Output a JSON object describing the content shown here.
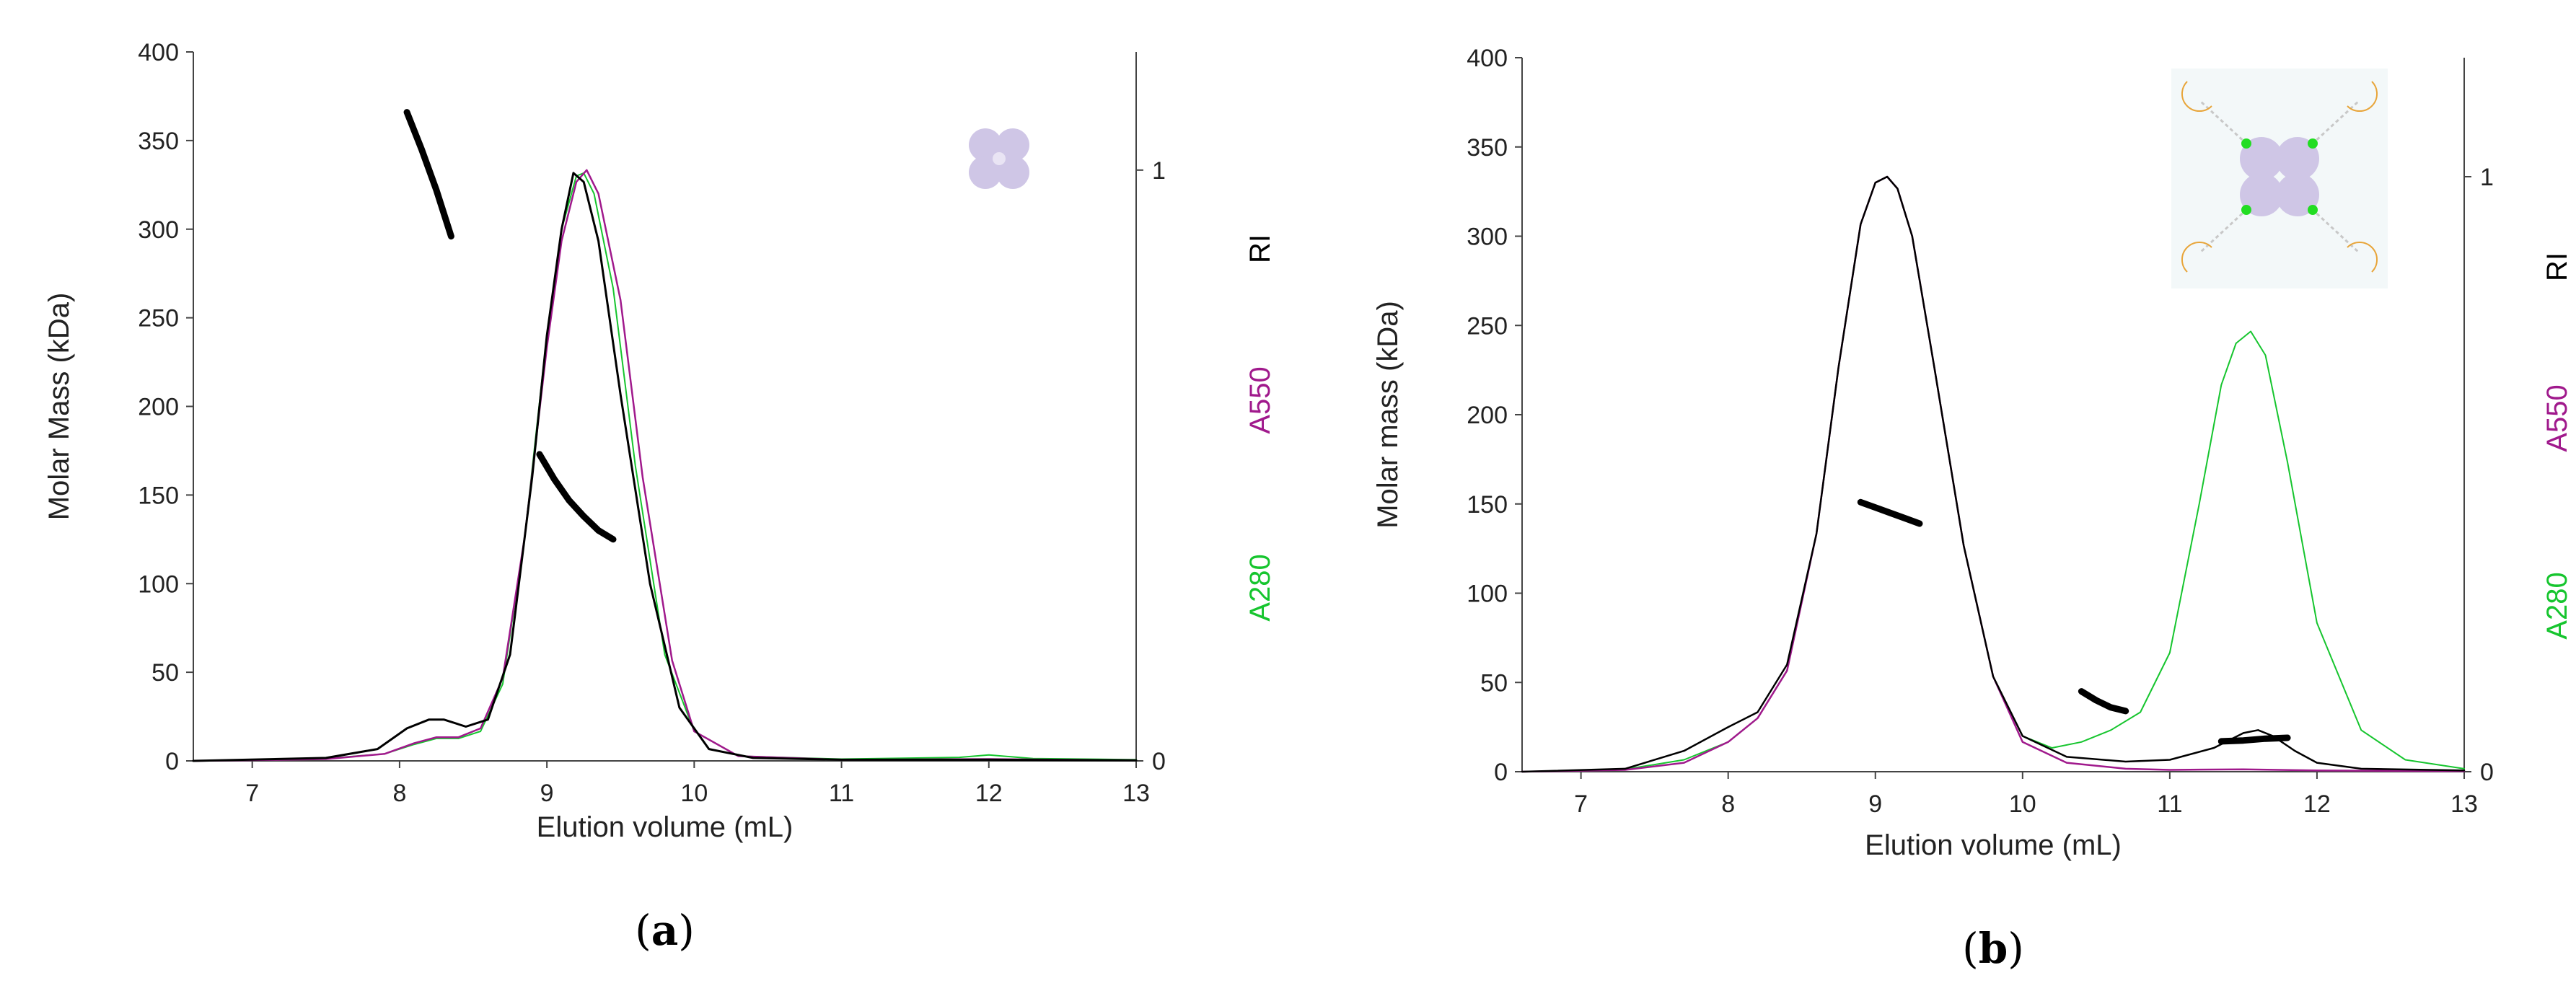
{
  "chart_data": [
    {
      "type": "line",
      "panel_label": "a",
      "xlabel": "Elution volume (mL)",
      "ylabel": "Molar Mass (kDa)",
      "right_labels": [
        {
          "text": "RI",
          "color": "#000000"
        },
        {
          "text": "A550",
          "color": "#a0198c"
        },
        {
          "text": "A280",
          "color": "#16c52e"
        }
      ],
      "xlim": [
        6.6,
        13
      ],
      "ylim": [
        0,
        400
      ],
      "y2lim": [
        0,
        1.2
      ],
      "x_ticks": [
        "7",
        "8",
        "9",
        "10",
        "11",
        "12",
        "13"
      ],
      "x_tick_values": [
        7,
        8,
        9,
        10,
        11,
        12,
        13
      ],
      "y_ticks": [
        "0",
        "50",
        "100",
        "150",
        "200",
        "250",
        "300",
        "350",
        "400"
      ],
      "y_tick_values": [
        0,
        50,
        100,
        150,
        200,
        250,
        300,
        350,
        400
      ],
      "y2_ticks": [
        "0",
        "1"
      ],
      "y2_tick_values": [
        0,
        1
      ],
      "grid": false,
      "icon": "tetramer-icon",
      "series": [
        {
          "axis": "y2",
          "color": "#16c52e",
          "width": 2,
          "x": [
            6.6,
            7.5,
            7.9,
            8.1,
            8.25,
            8.4,
            8.55,
            8.7,
            8.85,
            9.0,
            9.1,
            9.2,
            9.25,
            9.32,
            9.45,
            9.6,
            9.8,
            10.0,
            10.3,
            11.0,
            11.8,
            12.0,
            12.3,
            13.0
          ],
          "y": [
            0,
            0.004,
            0.012,
            0.028,
            0.038,
            0.038,
            0.05,
            0.13,
            0.38,
            0.72,
            0.9,
            0.99,
            0.995,
            0.96,
            0.8,
            0.5,
            0.18,
            0.05,
            0.008,
            0.003,
            0.006,
            0.01,
            0.004,
            0.002
          ]
        },
        {
          "axis": "y2",
          "color": "#a0198c",
          "width": 2.5,
          "x": [
            6.6,
            7.5,
            7.9,
            8.1,
            8.25,
            8.4,
            8.55,
            8.7,
            8.85,
            9.0,
            9.1,
            9.2,
            9.27,
            9.35,
            9.5,
            9.65,
            9.85,
            10.0,
            10.3,
            11.0,
            12.0,
            13.0
          ],
          "y": [
            0,
            0.003,
            0.012,
            0.03,
            0.04,
            0.04,
            0.055,
            0.14,
            0.38,
            0.7,
            0.88,
            0.98,
            1.0,
            0.96,
            0.78,
            0.48,
            0.17,
            0.05,
            0.008,
            0.002,
            0.003,
            0.001
          ]
        },
        {
          "axis": "y2",
          "color": "#000000",
          "width": 3,
          "x": [
            6.6,
            7.5,
            7.85,
            8.05,
            8.2,
            8.3,
            8.45,
            8.6,
            8.75,
            8.9,
            9.0,
            9.1,
            9.18,
            9.25,
            9.35,
            9.5,
            9.7,
            9.9,
            10.1,
            10.4,
            11.0,
            12.0,
            13.0
          ],
          "y": [
            0,
            0.005,
            0.02,
            0.055,
            0.07,
            0.07,
            0.058,
            0.07,
            0.18,
            0.48,
            0.72,
            0.9,
            0.995,
            0.98,
            0.88,
            0.62,
            0.3,
            0.09,
            0.02,
            0.005,
            0.002,
            0.002,
            0.001
          ]
        },
        {
          "axis": "y",
          "color": "#000000",
          "width": 9,
          "x": [
            8.05,
            8.15,
            8.25,
            8.35
          ],
          "y": [
            366,
            345,
            322,
            296
          ]
        },
        {
          "axis": "y",
          "color": "#000000",
          "width": 9,
          "x": [
            8.95,
            9.05,
            9.15,
            9.25,
            9.35,
            9.45
          ],
          "y": [
            173,
            159,
            147,
            138,
            130,
            125
          ]
        }
      ]
    },
    {
      "type": "line",
      "panel_label": "b",
      "xlabel": "Elution volume (mL)",
      "ylabel": "Molar mass (kDa)",
      "right_labels": [
        {
          "text": "RI",
          "color": "#000000"
        },
        {
          "text": "A550",
          "color": "#a0198c"
        },
        {
          "text": "A280",
          "color": "#16c52e"
        }
      ],
      "xlim": [
        6.6,
        13
      ],
      "ylim": [
        0,
        400
      ],
      "y2lim": [
        0,
        1.2
      ],
      "x_ticks": [
        "7",
        "8",
        "9",
        "10",
        "11",
        "12",
        "13"
      ],
      "x_tick_values": [
        7,
        8,
        9,
        10,
        11,
        12,
        13
      ],
      "y_ticks": [
        "0",
        "50",
        "100",
        "150",
        "200",
        "250",
        "300",
        "350",
        "400"
      ],
      "y_tick_values": [
        0,
        50,
        100,
        150,
        200,
        250,
        300,
        350,
        400
      ],
      "y2_ticks": [
        "0",
        "1"
      ],
      "y2_tick_values": [
        0,
        1
      ],
      "grid": false,
      "icon": "conjugate-icon",
      "series": [
        {
          "axis": "y2",
          "color": "#16c52e",
          "width": 2,
          "x": [
            6.6,
            7.3,
            7.7,
            8.0,
            8.2,
            8.4,
            8.6,
            8.75,
            8.9,
            9.0,
            9.08,
            9.15,
            9.25,
            9.4,
            9.6,
            9.8,
            10.0,
            10.2,
            10.4,
            10.6,
            10.8,
            11.0,
            11.2,
            11.35,
            11.45,
            11.55,
            11.65,
            11.8,
            12.0,
            12.3,
            12.6,
            13.0
          ],
          "y": [
            0,
            0.004,
            0.02,
            0.05,
            0.09,
            0.17,
            0.4,
            0.68,
            0.92,
            0.99,
            1.0,
            0.98,
            0.9,
            0.68,
            0.38,
            0.16,
            0.06,
            0.04,
            0.05,
            0.07,
            0.1,
            0.2,
            0.45,
            0.65,
            0.72,
            0.74,
            0.7,
            0.52,
            0.25,
            0.07,
            0.02,
            0.005
          ]
        },
        {
          "axis": "y2",
          "color": "#a0198c",
          "width": 2.5,
          "x": [
            6.6,
            7.3,
            7.7,
            8.0,
            8.2,
            8.4,
            8.6,
            8.75,
            8.9,
            9.0,
            9.08,
            9.15,
            9.25,
            9.4,
            9.6,
            9.8,
            10.0,
            10.3,
            10.7,
            11.0,
            11.5,
            12.0,
            13.0
          ],
          "y": [
            0,
            0.003,
            0.015,
            0.05,
            0.09,
            0.17,
            0.4,
            0.68,
            0.92,
            0.99,
            1.0,
            0.98,
            0.9,
            0.68,
            0.38,
            0.16,
            0.05,
            0.015,
            0.005,
            0.003,
            0.004,
            0.002,
            0.001
          ]
        },
        {
          "axis": "y2",
          "color": "#000000",
          "width": 2.5,
          "x": [
            6.6,
            7.3,
            7.7,
            8.0,
            8.2,
            8.4,
            8.6,
            8.75,
            8.9,
            9.0,
            9.08,
            9.15,
            9.25,
            9.4,
            9.6,
            9.8,
            10.0,
            10.3,
            10.7,
            11.0,
            11.3,
            11.5,
            11.6,
            11.7,
            11.85,
            12.0,
            12.3,
            13.0
          ],
          "y": [
            0,
            0.005,
            0.035,
            0.075,
            0.1,
            0.18,
            0.4,
            0.68,
            0.92,
            0.99,
            1.0,
            0.98,
            0.9,
            0.68,
            0.38,
            0.16,
            0.06,
            0.025,
            0.017,
            0.02,
            0.04,
            0.065,
            0.07,
            0.06,
            0.035,
            0.015,
            0.005,
            0.002
          ]
        },
        {
          "axis": "y",
          "color": "#000000",
          "width": 9,
          "x": [
            8.9,
            9.0,
            9.1,
            9.2,
            9.3
          ],
          "y": [
            151,
            148,
            145,
            142,
            139
          ]
        },
        {
          "axis": "y",
          "color": "#000000",
          "width": 9,
          "x": [
            10.4,
            10.5,
            10.6,
            10.7
          ],
          "y": [
            45,
            40,
            36,
            34
          ]
        },
        {
          "axis": "y",
          "color": "#000000",
          "width": 9,
          "x": [
            11.35,
            11.5,
            11.65,
            11.8
          ],
          "y": [
            17,
            17.5,
            18.5,
            19
          ]
        }
      ]
    }
  ]
}
